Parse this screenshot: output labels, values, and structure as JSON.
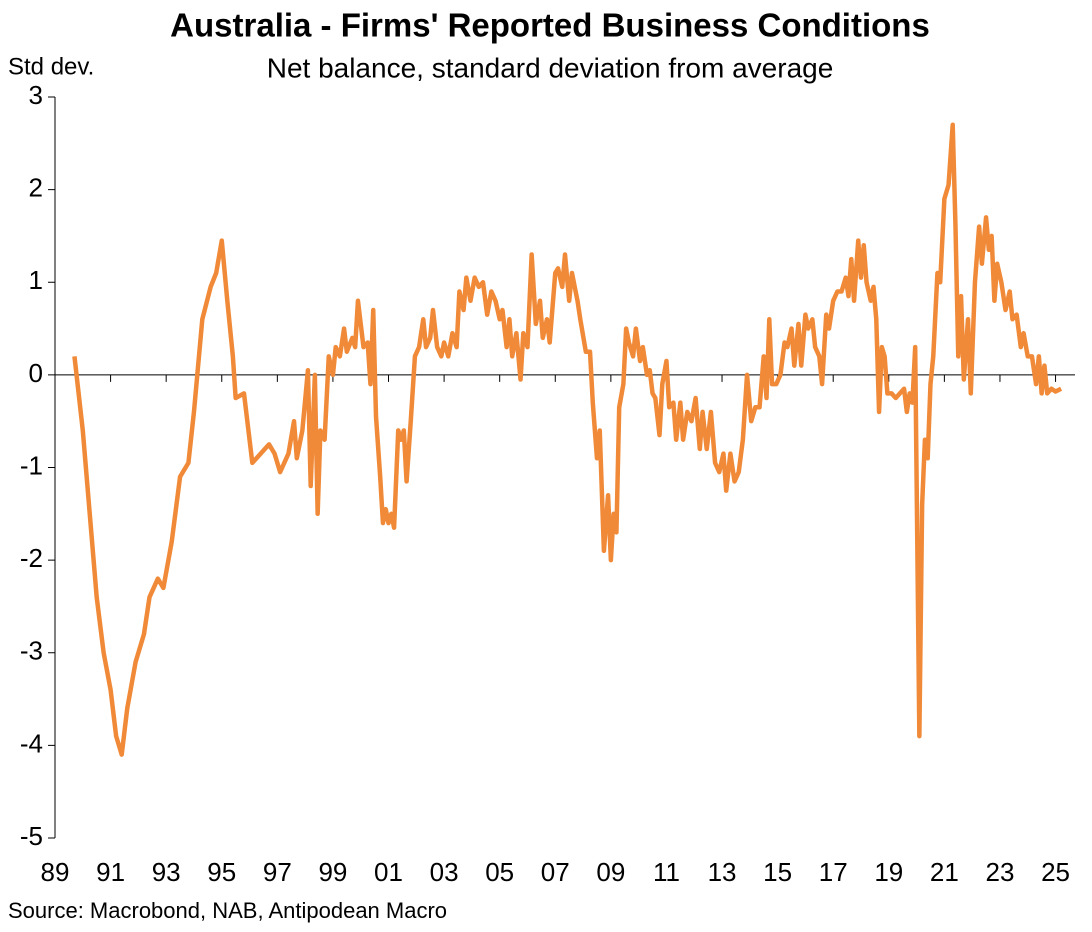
{
  "chart_data": {
    "type": "line",
    "title": "Australia - Firms' Reported Business Conditions",
    "subtitle": "Net balance, standard deviation from average",
    "y_label": "Std dev.",
    "source": "Source: Macrobond, NAB, Antipodean Macro",
    "xlim": [
      1989,
      2025.7
    ],
    "xticks": [
      {
        "value": 1989,
        "label": "89"
      },
      {
        "value": 1991,
        "label": "91"
      },
      {
        "value": 1993,
        "label": "93"
      },
      {
        "value": 1995,
        "label": "95"
      },
      {
        "value": 1997,
        "label": "97"
      },
      {
        "value": 1999,
        "label": "99"
      },
      {
        "value": 2001,
        "label": "01"
      },
      {
        "value": 2003,
        "label": "03"
      },
      {
        "value": 2005,
        "label": "05"
      },
      {
        "value": 2007,
        "label": "07"
      },
      {
        "value": 2009,
        "label": "09"
      },
      {
        "value": 2011,
        "label": "11"
      },
      {
        "value": 2013,
        "label": "13"
      },
      {
        "value": 2015,
        "label": "15"
      },
      {
        "value": 2017,
        "label": "17"
      },
      {
        "value": 2019,
        "label": "19"
      },
      {
        "value": 2021,
        "label": "21"
      },
      {
        "value": 2023,
        "label": "23"
      },
      {
        "value": 2025,
        "label": "25"
      }
    ],
    "ylim": [
      -5,
      3
    ],
    "yticks": [
      -5,
      -4,
      -3,
      -2,
      -1,
      0,
      1,
      2,
      3
    ],
    "x": [
      1989.7,
      1990.0,
      1990.25,
      1990.5,
      1990.75,
      1991.0,
      1991.2,
      1991.4,
      1991.6,
      1991.9,
      1992.2,
      1992.4,
      1992.7,
      1992.9,
      1993.2,
      1993.5,
      1993.8,
      1994.0,
      1994.3,
      1994.6,
      1994.8,
      1995.0,
      1995.2,
      1995.4,
      1995.5,
      1995.8,
      1996.1,
      1996.4,
      1996.7,
      1996.9,
      1997.1,
      1997.4,
      1997.6,
      1997.7,
      1997.9,
      1998.1,
      1998.2,
      1998.35,
      1998.45,
      1998.55,
      1998.7,
      1998.85,
      1999.0,
      1999.1,
      1999.25,
      1999.4,
      1999.5,
      1999.7,
      1999.8,
      1999.9,
      2000.1,
      2000.25,
      2000.35,
      2000.45,
      2000.55,
      2000.7,
      2000.8,
      2000.9,
      2001.0,
      2001.1,
      2001.2,
      2001.35,
      2001.45,
      2001.55,
      2001.65,
      2001.8,
      2001.95,
      2002.1,
      2002.25,
      2002.35,
      2002.5,
      2002.6,
      2002.75,
      2002.9,
      2003.0,
      2003.15,
      2003.3,
      2003.45,
      2003.55,
      2003.7,
      2003.8,
      2003.95,
      2004.1,
      2004.25,
      2004.4,
      2004.55,
      2004.7,
      2004.85,
      2005.0,
      2005.1,
      2005.25,
      2005.35,
      2005.45,
      2005.6,
      2005.75,
      2005.85,
      2006.0,
      2006.15,
      2006.3,
      2006.45,
      2006.55,
      2006.7,
      2006.8,
      2007.0,
      2007.1,
      2007.25,
      2007.35,
      2007.5,
      2007.6,
      2007.8,
      2007.9,
      2008.1,
      2008.25,
      2008.35,
      2008.5,
      2008.6,
      2008.75,
      2008.9,
      2009.0,
      2009.1,
      2009.2,
      2009.3,
      2009.45,
      2009.55,
      2009.65,
      2009.8,
      2009.9,
      2010.05,
      2010.15,
      2010.3,
      2010.4,
      2010.5,
      2010.6,
      2010.75,
      2010.85,
      2011.0,
      2011.1,
      2011.25,
      2011.35,
      2011.5,
      2011.6,
      2011.75,
      2011.9,
      2012.05,
      2012.2,
      2012.3,
      2012.45,
      2012.6,
      2012.75,
      2012.9,
      2013.05,
      2013.15,
      2013.3,
      2013.45,
      2013.6,
      2013.75,
      2013.9,
      2014.05,
      2014.2,
      2014.35,
      2014.5,
      2014.6,
      2014.7,
      2014.8,
      2014.95,
      2015.1,
      2015.25,
      2015.35,
      2015.5,
      2015.6,
      2015.75,
      2015.85,
      2016.0,
      2016.1,
      2016.25,
      2016.35,
      2016.5,
      2016.6,
      2016.75,
      2016.85,
      2017.0,
      2017.15,
      2017.3,
      2017.45,
      2017.55,
      2017.65,
      2017.75,
      2017.9,
      2018.0,
      2018.1,
      2018.2,
      2018.35,
      2018.45,
      2018.55,
      2018.65,
      2018.75,
      2018.85,
      2018.95,
      2019.1,
      2019.25,
      2019.4,
      2019.55,
      2019.65,
      2019.75,
      2019.85,
      2019.95,
      2020.1,
      2020.2,
      2020.3,
      2020.4,
      2020.5,
      2020.6,
      2020.75,
      2020.85,
      2021.0,
      2021.15,
      2021.3,
      2021.4,
      2021.5,
      2021.6,
      2021.7,
      2021.85,
      2021.95,
      2022.1,
      2022.25,
      2022.35,
      2022.5,
      2022.6,
      2022.7,
      2022.8,
      2022.9,
      2023.05,
      2023.2,
      2023.35,
      2023.45,
      2023.6,
      2023.75,
      2023.85,
      2024.0,
      2024.15,
      2024.3,
      2024.4,
      2024.5,
      2024.6,
      2024.7,
      2024.85,
      2025.0,
      2025.2
    ],
    "series": [
      {
        "name": "Business conditions",
        "color": "#f08a38",
        "values": [
          0.2,
          -0.6,
          -1.5,
          -2.4,
          -3.0,
          -3.4,
          -3.9,
          -4.1,
          -3.6,
          -3.1,
          -2.8,
          -2.4,
          -2.2,
          -2.3,
          -1.8,
          -1.1,
          -0.95,
          -0.4,
          0.6,
          0.95,
          1.1,
          1.45,
          0.8,
          0.2,
          -0.25,
          -0.2,
          -0.95,
          -0.85,
          -0.75,
          -0.85,
          -1.05,
          -0.85,
          -0.5,
          -0.9,
          -0.6,
          0.05,
          -1.2,
          0.0,
          -1.5,
          -0.6,
          -0.7,
          0.2,
          0.0,
          0.3,
          0.2,
          0.5,
          0.25,
          0.4,
          0.3,
          0.8,
          0.3,
          0.35,
          -0.1,
          0.7,
          -0.45,
          -1.1,
          -1.6,
          -1.45,
          -1.6,
          -1.5,
          -1.65,
          -0.6,
          -0.7,
          -0.6,
          -1.15,
          -0.5,
          0.2,
          0.3,
          0.6,
          0.3,
          0.4,
          0.7,
          0.3,
          0.2,
          0.35,
          0.2,
          0.45,
          0.3,
          0.9,
          0.7,
          1.05,
          0.8,
          1.05,
          0.95,
          1.0,
          0.65,
          0.9,
          0.8,
          0.6,
          0.7,
          0.3,
          0.6,
          0.2,
          0.45,
          -0.05,
          0.45,
          0.3,
          1.3,
          0.55,
          0.8,
          0.4,
          0.6,
          0.35,
          1.1,
          1.15,
          0.95,
          1.3,
          0.8,
          1.1,
          0.8,
          0.6,
          0.25,
          0.25,
          -0.3,
          -0.9,
          -0.6,
          -1.9,
          -1.3,
          -2.0,
          -1.5,
          -1.7,
          -0.35,
          -0.1,
          0.5,
          0.35,
          0.2,
          0.5,
          0.15,
          0.3,
          0.0,
          0.05,
          -0.2,
          -0.25,
          -0.65,
          -0.1,
          0.15,
          -0.35,
          -0.3,
          -0.7,
          -0.3,
          -0.7,
          -0.4,
          -0.5,
          -0.25,
          -0.8,
          -0.4,
          -0.8,
          -0.4,
          -0.95,
          -1.05,
          -0.85,
          -1.25,
          -0.85,
          -1.15,
          -1.05,
          -0.7,
          0.0,
          -0.5,
          -0.35,
          -0.35,
          0.2,
          -0.25,
          0.6,
          -0.1,
          -0.1,
          0.0,
          0.35,
          0.3,
          0.5,
          0.1,
          0.55,
          0.1,
          0.65,
          0.5,
          0.6,
          0.3,
          0.2,
          -0.1,
          0.65,
          0.5,
          0.8,
          0.9,
          0.9,
          1.05,
          0.85,
          1.25,
          0.8,
          1.45,
          1.05,
          1.4,
          1.0,
          0.8,
          0.95,
          0.6,
          -0.4,
          0.3,
          0.2,
          -0.2,
          -0.2,
          -0.25,
          -0.2,
          -0.15,
          -0.4,
          -0.2,
          -0.3,
          0.3,
          -3.9,
          -1.4,
          -0.7,
          -0.9,
          -0.1,
          0.2,
          1.1,
          1.0,
          1.9,
          2.05,
          2.7,
          1.6,
          0.2,
          0.85,
          -0.05,
          0.6,
          -0.2,
          1.0,
          1.6,
          1.2,
          1.7,
          1.35,
          1.5,
          0.8,
          1.2,
          1.0,
          0.7,
          0.9,
          0.6,
          0.65,
          0.3,
          0.45,
          0.2,
          0.2,
          -0.1,
          0.2,
          -0.2,
          0.1,
          -0.2,
          -0.15,
          -0.18,
          -0.15
        ]
      }
    ]
  }
}
